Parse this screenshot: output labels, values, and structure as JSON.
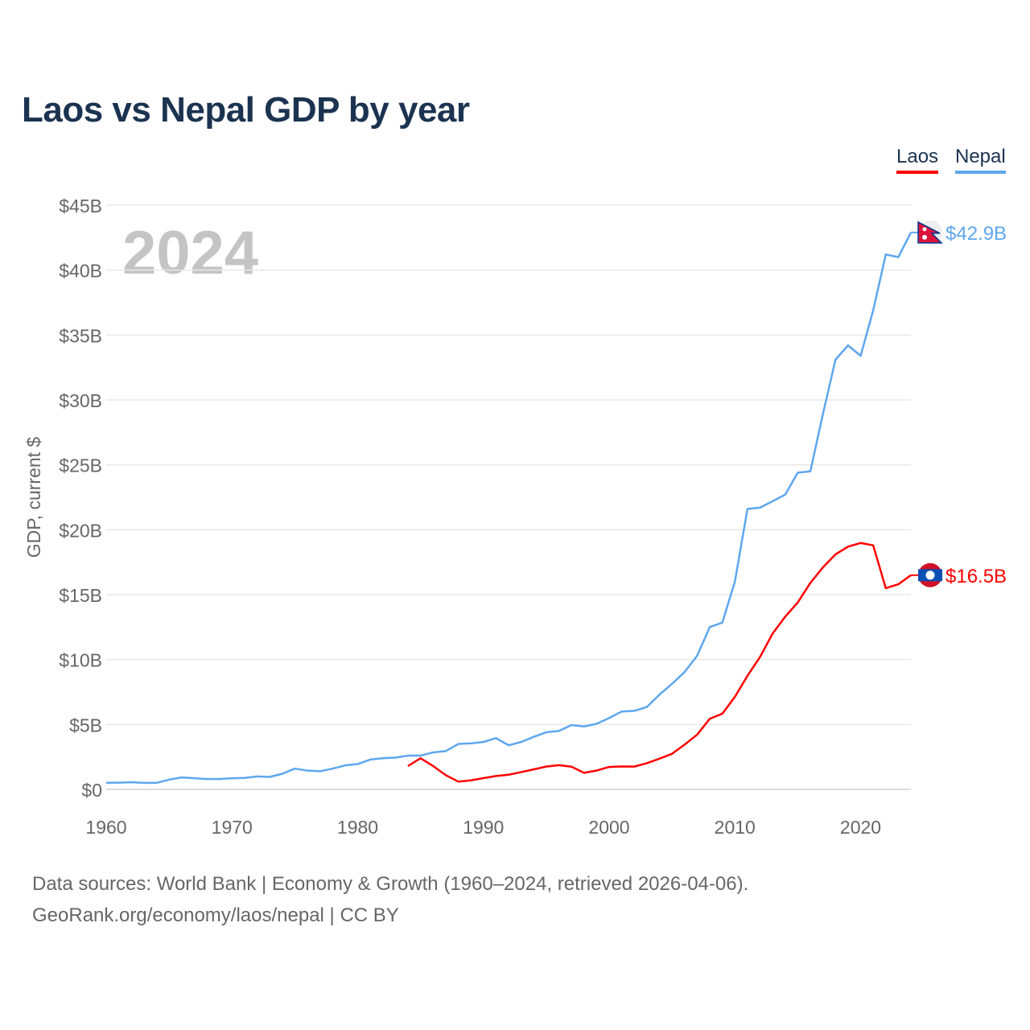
{
  "title": "Laos vs Nepal GDP by year",
  "footer": {
    "line1": "Data sources: World Bank | Economy & Growth (1960–2024, retrieved 2026-04-06).",
    "line2": "GeoRank.org/economy/laos/nepal | CC BY"
  },
  "chart_data": {
    "type": "line",
    "title": "Laos vs Nepal GDP by year",
    "xlabel": "",
    "ylabel": "GDP, current $",
    "year_watermark": "2024",
    "xlim": [
      1960,
      2024
    ],
    "ylim": [
      0,
      45
    ],
    "xticks": [
      1960,
      1970,
      1980,
      1990,
      2000,
      2010,
      2020
    ],
    "yticks": [
      0,
      5,
      10,
      15,
      20,
      25,
      30,
      35,
      40,
      45
    ],
    "ytick_labels": [
      "$0",
      "$5B",
      "$10B",
      "$15B",
      "$20B",
      "$25B",
      "$30B",
      "$35B",
      "$40B",
      "$45B"
    ],
    "grid": true,
    "legend_placement": "top-right",
    "series": [
      {
        "name": "Laos",
        "color": "#ff0000",
        "flag": "laos-flag",
        "end_label": "$16.5B",
        "start_year": 1984,
        "values": [
          1.8,
          2.4,
          1.8,
          1.1,
          0.6,
          0.7,
          0.87,
          1.03,
          1.13,
          1.33,
          1.54,
          1.76,
          1.87,
          1.75,
          1.28,
          1.45,
          1.73,
          1.77,
          1.76,
          2.02,
          2.37,
          2.74,
          3.45,
          4.22,
          5.44,
          5.83,
          7.13,
          8.75,
          10.2,
          12.0,
          13.3,
          14.4,
          15.9,
          17.1,
          18.1,
          18.7,
          18.98,
          18.8,
          15.5,
          15.8,
          16.5
        ]
      },
      {
        "name": "Nepal",
        "color": "#5ea7ee",
        "flag": "nepal-flag",
        "end_label": "$42.9B",
        "start_year": 1960,
        "values": [
          0.51,
          0.52,
          0.55,
          0.5,
          0.5,
          0.75,
          0.92,
          0.86,
          0.8,
          0.8,
          0.86,
          0.88,
          1.0,
          0.96,
          1.2,
          1.6,
          1.45,
          1.4,
          1.6,
          1.85,
          1.95,
          2.3,
          2.4,
          2.45,
          2.6,
          2.6,
          2.85,
          2.95,
          3.5,
          3.55,
          3.65,
          3.95,
          3.4,
          3.65,
          4.05,
          4.4,
          4.5,
          4.95,
          4.85,
          5.05,
          5.5,
          6.0,
          6.05,
          6.35,
          7.3,
          8.13,
          9.04,
          10.3,
          12.5,
          12.85,
          16.0,
          21.6,
          21.7,
          22.2,
          22.7,
          24.4,
          24.5,
          28.9,
          33.1,
          34.2,
          33.4,
          36.9,
          41.2,
          41.0,
          42.9
        ]
      }
    ]
  }
}
